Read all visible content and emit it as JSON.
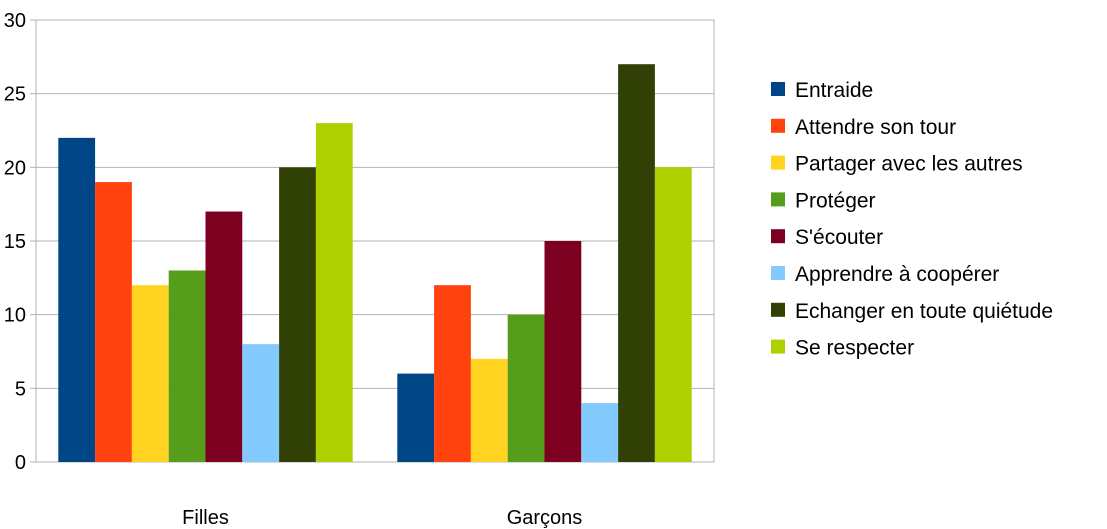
{
  "chart_data": {
    "type": "bar",
    "categories": [
      "Filles",
      "Garçons"
    ],
    "ylim": [
      0,
      30
    ],
    "yticks": [
      0,
      5,
      10,
      15,
      20,
      25,
      30
    ],
    "grid": true,
    "legend_position": "right",
    "series": [
      {
        "name": "Entraide",
        "color": "#004586",
        "values": [
          22,
          6
        ]
      },
      {
        "name": "Attendre son tour",
        "color": "#ff420e",
        "values": [
          19,
          12
        ]
      },
      {
        "name": "Partager avec les autres",
        "color": "#ffd320",
        "values": [
          12,
          7
        ]
      },
      {
        "name": "Protéger",
        "color": "#579d1c",
        "values": [
          13,
          10
        ]
      },
      {
        "name": "S'écouter",
        "color": "#7e0021",
        "values": [
          17,
          15
        ]
      },
      {
        "name": "Apprendre à coopérer",
        "color": "#83caff",
        "values": [
          8,
          4
        ]
      },
      {
        "name": "Echanger en toute quiétude",
        "color": "#314004",
        "values": [
          20,
          27
        ]
      },
      {
        "name": "Se respecter",
        "color": "#aecf00",
        "values": [
          23,
          20
        ]
      }
    ]
  }
}
